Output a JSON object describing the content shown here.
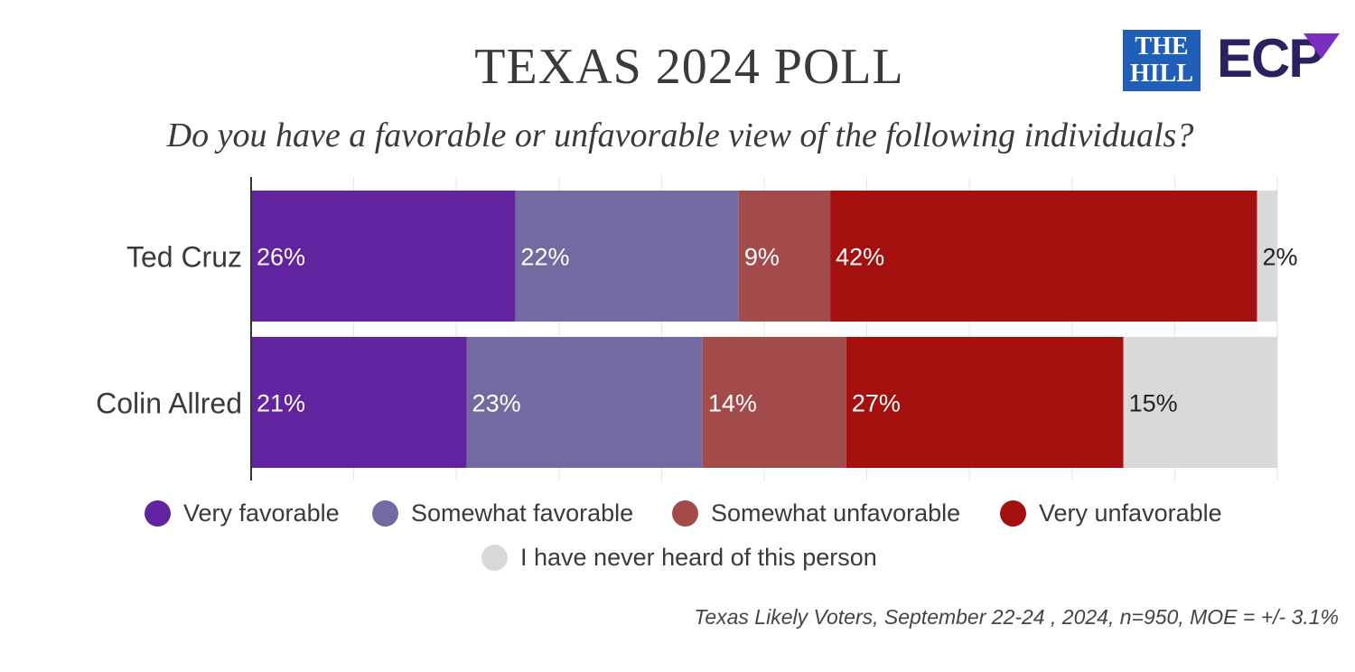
{
  "header": {
    "title": "TEXAS 2024 POLL",
    "subtitle": "Do you have a favorable or unfavorable view of the following individuals?",
    "logo_hill_line1": "THE",
    "logo_hill_line2": "HILL",
    "logo_ecp": "ECP"
  },
  "footnote": "Texas Likely Voters, September 22-24 , 2024, n=950, MOE = +/- 3.1%",
  "chart_data": {
    "type": "bar",
    "orientation": "horizontal",
    "stacked": true,
    "categories": [
      "Ted Cruz",
      "Colin Allred"
    ],
    "series": [
      {
        "name": "Very favorable",
        "color": "#61249e",
        "values": [
          26,
          21
        ],
        "labels": [
          "26%",
          "21%"
        ]
      },
      {
        "name": "Somewhat favorable",
        "color": "#746aa2",
        "values": [
          22,
          23
        ],
        "labels": [
          "22%",
          "23%"
        ]
      },
      {
        "name": "Somewhat unfavorable",
        "color": "#a34a4b",
        "values": [
          9,
          14
        ],
        "labels": [
          "9%",
          "14%"
        ]
      },
      {
        "name": "Very unfavorable",
        "color": "#a3100e",
        "values": [
          42,
          27
        ],
        "labels": [
          "42%",
          "27%"
        ]
      },
      {
        "name": "I have never heard of this person",
        "color": "#d9d9d9",
        "values": [
          2,
          15
        ],
        "labels": [
          "2%",
          "15%"
        ]
      }
    ],
    "grid": true,
    "legend_position": "bottom"
  }
}
